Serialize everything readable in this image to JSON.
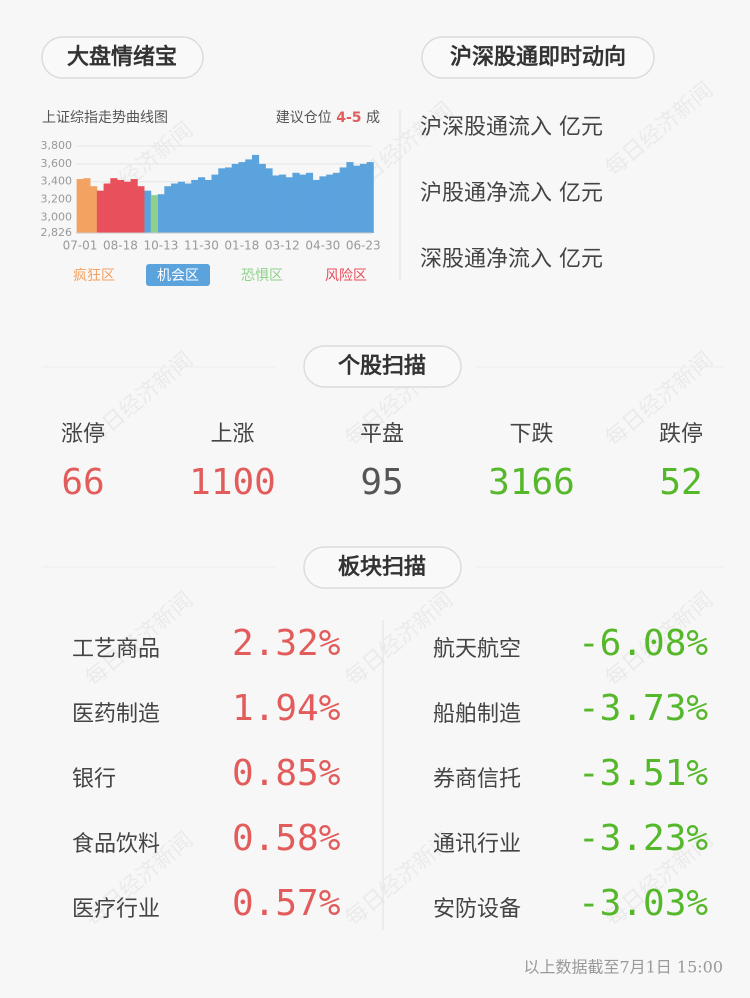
{
  "mood_panel": {
    "title": "大盘情绪宝",
    "chart_data": {
      "type": "area",
      "title": "上证综指走势曲线图",
      "position_label": "建议仓位",
      "position_value": "4-5",
      "position_unit": "成",
      "categories": [
        "07-01",
        null,
        null,
        null,
        null,
        null,
        "08-18",
        null,
        null,
        null,
        null,
        null,
        "10-13",
        null,
        null,
        null,
        null,
        null,
        "11-30",
        null,
        null,
        null,
        null,
        null,
        "01-18",
        null,
        null,
        null,
        null,
        null,
        "03-12",
        null,
        null,
        null,
        null,
        null,
        "04-30",
        null,
        null,
        null,
        null,
        null,
        "06-23",
        null
      ],
      "series": [
        {
          "name": "疯狂区",
          "color": "#f4a261",
          "values": [
            3430,
            3440,
            3350,
            null,
            null,
            null,
            null,
            null,
            null,
            null,
            null,
            null,
            null,
            null,
            null,
            null,
            null,
            null,
            null,
            null,
            null,
            null,
            null,
            null,
            null,
            null,
            null,
            null,
            null,
            null,
            null,
            null,
            null,
            null,
            null,
            null,
            null,
            null,
            null,
            null,
            null,
            null,
            null,
            null
          ]
        },
        {
          "name": "机会区",
          "color": "#5ba3dd",
          "values": [
            null,
            null,
            null,
            null,
            null,
            null,
            null,
            null,
            null,
            null,
            3300,
            null,
            3260,
            3350,
            3380,
            3400,
            3380,
            3420,
            3450,
            3420,
            3480,
            3550,
            3560,
            3600,
            3620,
            3650,
            3700,
            3600,
            3550,
            3470,
            3480,
            3450,
            3500,
            3480,
            3500,
            3420,
            3460,
            3480,
            3500,
            3560,
            3620,
            3580,
            3600,
            3620
          ]
        },
        {
          "name": "恐惧区",
          "color": "#8fd18a",
          "values": [
            null,
            null,
            null,
            null,
            null,
            null,
            null,
            null,
            null,
            null,
            null,
            3250,
            null,
            null,
            null,
            null,
            null,
            null,
            null,
            null,
            null,
            null,
            null,
            null,
            null,
            null,
            null,
            null,
            null,
            null,
            null,
            null,
            null,
            null,
            null,
            null,
            null,
            null,
            null,
            null,
            null,
            null,
            null,
            null
          ]
        },
        {
          "name": "风险区",
          "color": "#e8505b",
          "values": [
            null,
            null,
            null,
            3300,
            3380,
            3440,
            3420,
            3400,
            3430,
            3350,
            null,
            null,
            null,
            null,
            null,
            null,
            null,
            null,
            null,
            null,
            null,
            null,
            null,
            null,
            null,
            null,
            null,
            null,
            null,
            null,
            null,
            null,
            null,
            null,
            null,
            null,
            null,
            null,
            null,
            null,
            null,
            null,
            null,
            null
          ]
        }
      ],
      "legend_active": 1,
      "ylim": [
        2826,
        3800
      ],
      "yticks": [
        {
          "value": 2826,
          "label": "2,826"
        },
        {
          "value": 3000,
          "label": "3,000"
        },
        {
          "value": 3200,
          "label": "3,200"
        },
        {
          "value": 3400,
          "label": "3,400"
        },
        {
          "value": 3600,
          "label": "3,600"
        },
        {
          "value": 3800,
          "label": "3,800"
        }
      ],
      "grid": true
    }
  },
  "flow_panel": {
    "title": "沪深股通即时动向",
    "items": [
      "沪深股通流入 亿元",
      "沪股通净流入 亿元",
      "深股通净流入 亿元"
    ]
  },
  "stock_scan": {
    "title": "个股扫描",
    "stats": [
      {
        "label": "涨停",
        "value": 66,
        "color": "#e25c5c"
      },
      {
        "label": "上涨",
        "value": 1100,
        "color": "#e25c5c"
      },
      {
        "label": "平盘",
        "value": 95,
        "color": "#555555"
      },
      {
        "label": "下跌",
        "value": 3166,
        "color": "#55b82a"
      },
      {
        "label": "跌停",
        "value": 52,
        "color": "#55b82a"
      }
    ]
  },
  "sector_scan": {
    "title": "板块扫描",
    "gainers": [
      {
        "name": "工艺商品",
        "change": "2.32%"
      },
      {
        "name": "医药制造",
        "change": "1.94%"
      },
      {
        "name": "银行",
        "change": "0.85%"
      },
      {
        "name": "食品饮料",
        "change": "0.58%"
      },
      {
        "name": "医疗行业",
        "change": "0.57%"
      }
    ],
    "losers": [
      {
        "name": "航天航空",
        "change": "-6.08%"
      },
      {
        "name": "船舶制造",
        "change": "-3.73%"
      },
      {
        "name": "券商信托",
        "change": "-3.51%"
      },
      {
        "name": "通讯行业",
        "change": "-3.23%"
      },
      {
        "name": "安防设备",
        "change": "-3.03%"
      }
    ],
    "gain_color": "#e25c5c",
    "loss_color": "#55b82a"
  },
  "footer": "以上数据截至7月1日 15:00",
  "watermark": "每日经济新闻"
}
